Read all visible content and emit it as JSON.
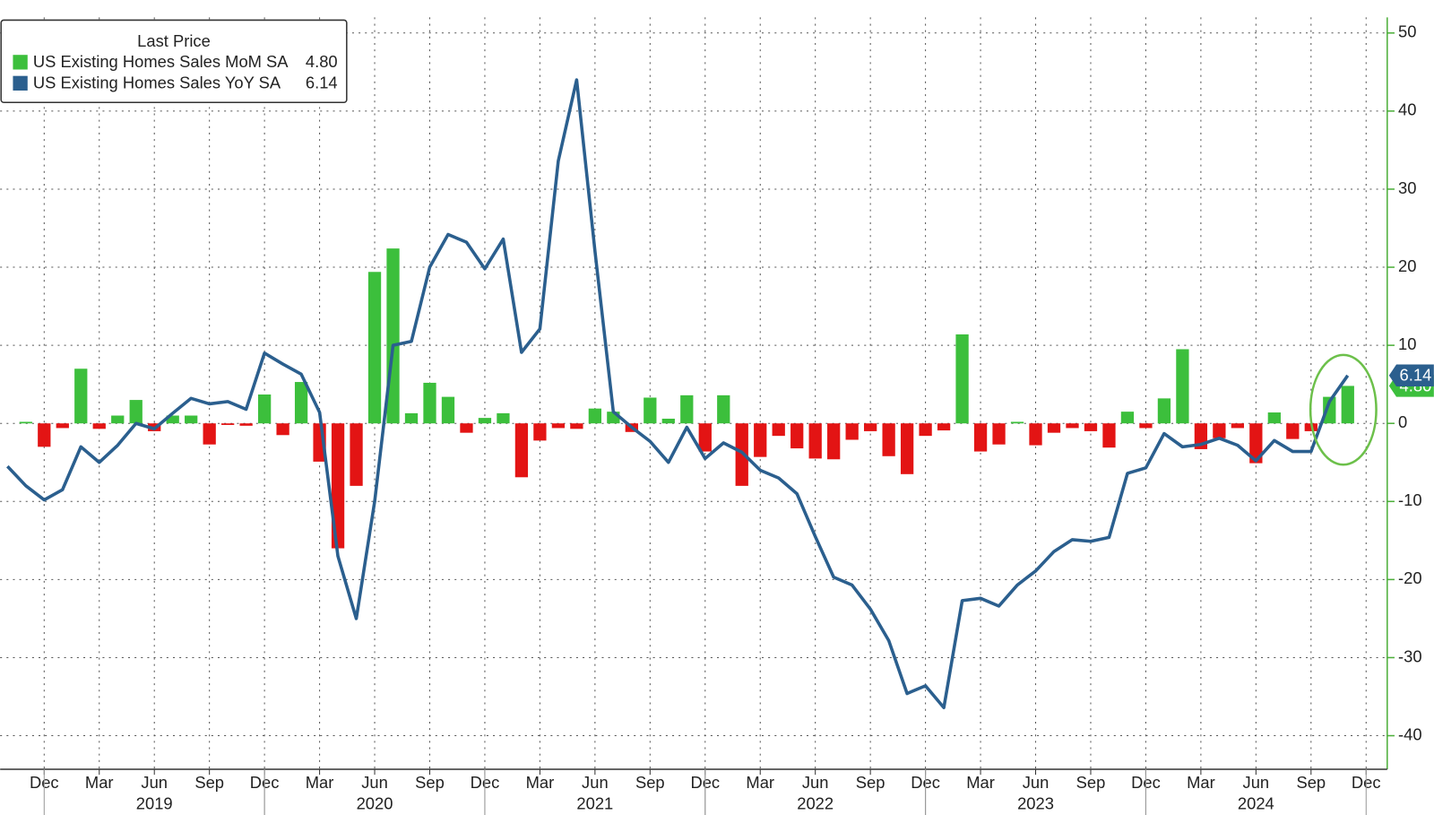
{
  "chart_data": {
    "type": "bar_line",
    "legend_title": "Last Price",
    "categories": [
      "2018-10",
      "2018-11",
      "2018-12",
      "2019-01",
      "2019-02",
      "2019-03",
      "2019-04",
      "2019-05",
      "2019-06",
      "2019-07",
      "2019-08",
      "2019-09",
      "2019-10",
      "2019-11",
      "2019-12",
      "2020-01",
      "2020-02",
      "2020-03",
      "2020-04",
      "2020-05",
      "2020-06",
      "2020-07",
      "2020-08",
      "2020-09",
      "2020-10",
      "2020-11",
      "2020-12",
      "2021-01",
      "2021-02",
      "2021-03",
      "2021-04",
      "2021-05",
      "2021-06",
      "2021-07",
      "2021-08",
      "2021-09",
      "2021-10",
      "2021-11",
      "2021-12",
      "2022-01",
      "2022-02",
      "2022-03",
      "2022-04",
      "2022-05",
      "2022-06",
      "2022-07",
      "2022-08",
      "2022-09",
      "2022-10",
      "2022-11",
      "2022-12",
      "2023-01",
      "2023-02",
      "2023-03",
      "2023-04",
      "2023-05",
      "2023-06",
      "2023-07",
      "2023-08",
      "2023-09",
      "2023-10",
      "2023-11",
      "2023-12",
      "2024-01",
      "2024-02",
      "2024-03",
      "2024-04",
      "2024-05",
      "2024-06",
      "2024-07",
      "2024-08",
      "2024-09",
      "2024-10",
      "2024-11"
    ],
    "series": [
      {
        "name": "US Existing Homes Sales MoM SA",
        "kind": "bar",
        "color": "#3cbf3c",
        "negative_color": "#e31414",
        "last_label": "4.80",
        "values": [
          null,
          0.2,
          -3,
          -0.6,
          7,
          -0.7,
          1,
          3,
          -1,
          1,
          1,
          -2.7,
          -0.2,
          -0.3,
          3.7,
          -1.5,
          5.3,
          -4.9,
          -16,
          -8,
          19.4,
          22.4,
          1.3,
          5.2,
          3.4,
          -1.2,
          0.7,
          1.3,
          -6.9,
          -2.2,
          -0.6,
          -0.7,
          1.9,
          1.5,
          -1.1,
          3.3,
          0.6,
          3.6,
          -3.6,
          3.6,
          -8,
          -4.3,
          -1.6,
          -3.2,
          -4.5,
          -4.6,
          -2.1,
          -1,
          -4.2,
          -6.5,
          -1.6,
          -0.9,
          11.4,
          -3.6,
          -2.7,
          0.2,
          -2.8,
          -1.2,
          -0.6,
          -1,
          -3.1,
          1.5,
          -0.6,
          3.2,
          9.5,
          -3.3,
          -1.9,
          -0.6,
          -5.1,
          1.4,
          -2,
          -1,
          3.4,
          4.8
        ]
      },
      {
        "name": "US Existing Homes Sales YoY SA",
        "kind": "line",
        "color": "#2b5f8e",
        "last_label": "6.14",
        "values": [
          -5.5,
          -8,
          -9.8,
          -8.5,
          -3,
          -5,
          -2.8,
          0,
          -0.7,
          1.3,
          3.2,
          2.5,
          2.8,
          1.8,
          9,
          7.6,
          6.3,
          1.4,
          -17,
          -25,
          -10,
          10,
          10.5,
          20,
          24.2,
          23.2,
          19.8,
          23.6,
          9.1,
          12.1,
          33.6,
          44,
          22,
          1.5,
          -0.5,
          -2.3,
          -5,
          -0.5,
          -4.5,
          -2.5,
          -3.7,
          -6,
          -7,
          -9,
          -14.5,
          -19.7,
          -20.7,
          -23.8,
          -27.8,
          -34.6,
          -33.6,
          -36.4,
          -22.7,
          -22.4,
          -23.4,
          -20.7,
          -18.9,
          -16.4,
          -14.9,
          -15.1,
          -14.6,
          -6.4,
          -5.7,
          -1.3,
          -3,
          -2.7,
          -1.9,
          -2.8,
          -4.8,
          -2.2,
          -3.6,
          -3.6,
          2.8,
          6.14
        ]
      }
    ],
    "xticks": [
      {
        "value": "2018-12",
        "label": "Dec"
      },
      {
        "value": "2019-03",
        "label": "Mar"
      },
      {
        "value": "2019-06",
        "label": "Jun"
      },
      {
        "value": "2019-09",
        "label": "Sep"
      },
      {
        "value": "2019-12",
        "label": "Dec"
      },
      {
        "value": "2020-03",
        "label": "Mar"
      },
      {
        "value": "2020-06",
        "label": "Jun"
      },
      {
        "value": "2020-09",
        "label": "Sep"
      },
      {
        "value": "2020-12",
        "label": "Dec"
      },
      {
        "value": "2021-03",
        "label": "Mar"
      },
      {
        "value": "2021-06",
        "label": "Jun"
      },
      {
        "value": "2021-09",
        "label": "Sep"
      },
      {
        "value": "2021-12",
        "label": "Dec"
      },
      {
        "value": "2022-03",
        "label": "Mar"
      },
      {
        "value": "2022-06",
        "label": "Jun"
      },
      {
        "value": "2022-09",
        "label": "Sep"
      },
      {
        "value": "2022-12",
        "label": "Dec"
      },
      {
        "value": "2023-03",
        "label": "Mar"
      },
      {
        "value": "2023-06",
        "label": "Jun"
      },
      {
        "value": "2023-09",
        "label": "Sep"
      },
      {
        "value": "2023-12",
        "label": "Dec"
      },
      {
        "value": "2024-03",
        "label": "Mar"
      },
      {
        "value": "2024-06",
        "label": "Jun"
      },
      {
        "value": "2024-09",
        "label": "Sep"
      },
      {
        "value": "2024-12",
        "label": "Dec"
      }
    ],
    "year_labels": [
      {
        "value": "2019-06",
        "label": "2019"
      },
      {
        "value": "2020-06",
        "label": "2020"
      },
      {
        "value": "2021-06",
        "label": "2021"
      },
      {
        "value": "2022-06",
        "label": "2022"
      },
      {
        "value": "2023-06",
        "label": "2023"
      },
      {
        "value": "2024-06",
        "label": "2024"
      }
    ],
    "ylim": [
      -44.3,
      52
    ],
    "yticks": [
      50,
      40,
      30,
      20,
      10,
      0,
      -10,
      -20,
      -30,
      -40
    ],
    "grid": true
  }
}
